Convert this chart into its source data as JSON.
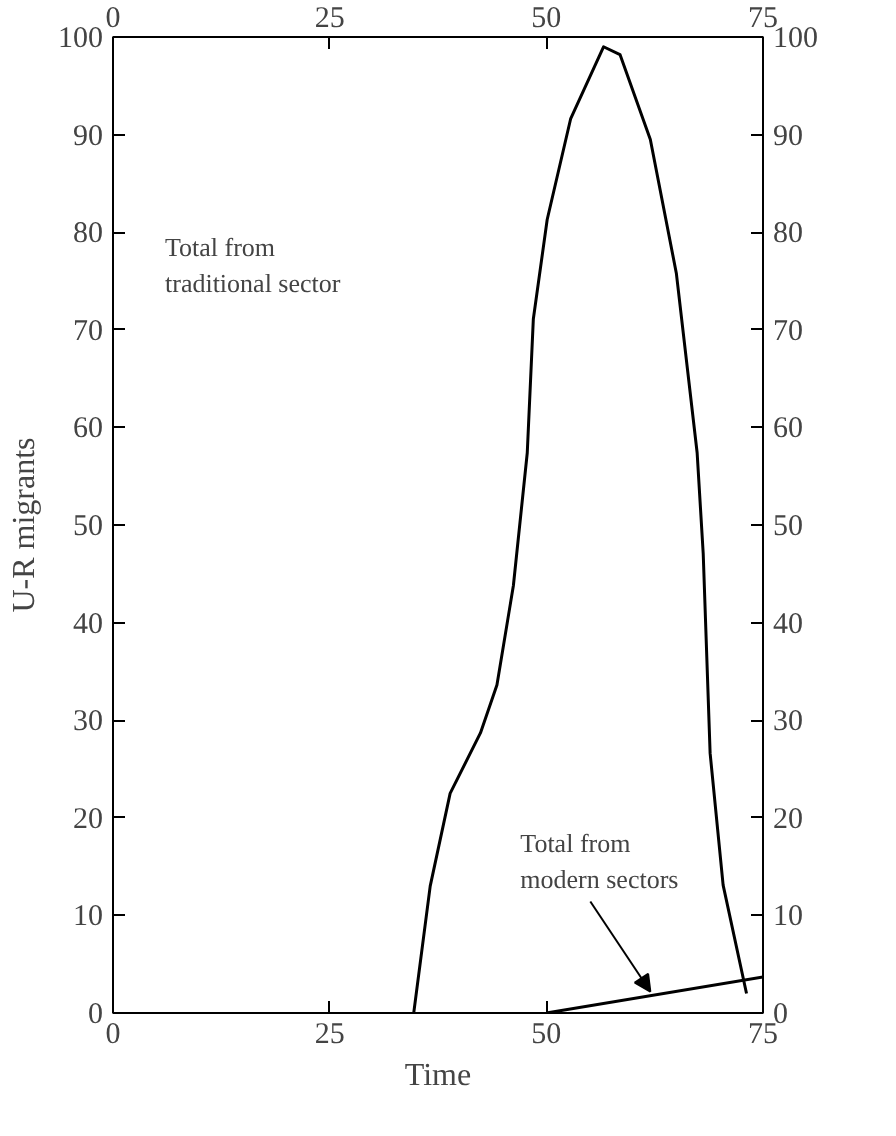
{
  "chart_data": {
    "type": "line",
    "xlabel": "Time",
    "ylabel": "U-R migrants",
    "xlim": [
      0,
      75
    ],
    "xticks": [
      0,
      25,
      50,
      75
    ],
    "x2lim": [
      0,
      75
    ],
    "x2ticks": [
      0,
      25,
      50,
      75
    ],
    "ylim": [
      0,
      100
    ],
    "yticks": [
      0,
      10,
      20,
      30,
      40,
      50,
      60,
      70,
      80,
      90,
      100
    ],
    "y2lim": [
      0,
      100
    ],
    "y2ticks": [
      0,
      10,
      20,
      30,
      40,
      50,
      60,
      70,
      80,
      90,
      100
    ],
    "grid": false,
    "line_style": "solid",
    "series": [
      {
        "color": "#000000",
        "x": [
          34.7,
          36.6,
          38.9,
          42.4,
          44.3,
          46.2,
          47.8,
          48.5,
          50.1,
          52.8,
          56.6,
          58.5,
          62,
          65,
          67.4,
          68.1,
          68.9,
          70.4,
          73.1
        ],
        "values": [
          0,
          13,
          22.5,
          28.7,
          33.6,
          43.8,
          57.4,
          71.1,
          81.3,
          91.6,
          99,
          98.2,
          89.5,
          75.8,
          57.4,
          47.1,
          26.6,
          13.1,
          2
        ]
      },
      {
        "color": "#000000",
        "x": [
          50,
          75
        ],
        "values": [
          0,
          3.7
        ]
      }
    ],
    "annotations": [
      "Total from\ntraditional sector",
      {
        "text": "Total from\nmodern sectors",
        "x": 62,
        "y": 2.2
      }
    ]
  }
}
